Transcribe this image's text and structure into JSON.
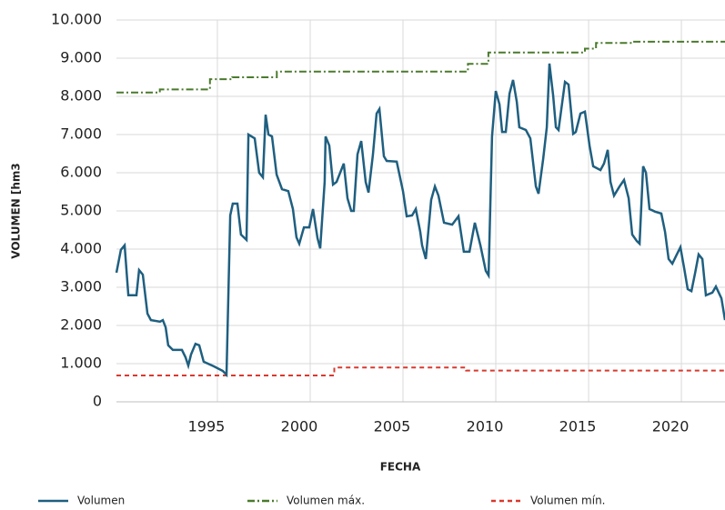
{
  "chart_data": {
    "type": "line",
    "xlabel": "FECHA",
    "ylabel": "VOLUMEN [hm3",
    "xlim": [
      1989.56,
      2022.35
    ],
    "xticks": [
      1995,
      2000,
      2005,
      2010,
      2015,
      2020
    ],
    "ylim": [
      0,
      10000
    ],
    "yticks": [
      0,
      {
        "value": 1000,
        "label": "1.000"
      },
      {
        "value": 2000,
        "label": "2.000"
      },
      {
        "value": 3000,
        "label": "3.000"
      },
      {
        "value": 4000,
        "label": "4.000"
      },
      {
        "value": 5000,
        "label": "5.000"
      },
      {
        "value": 6000,
        "label": "6.000"
      },
      {
        "value": 7000,
        "label": "7.000"
      },
      {
        "value": 8000,
        "label": "8.000"
      },
      {
        "value": 9000,
        "label": "9.000"
      },
      {
        "value": 10000,
        "label": "10.000"
      }
    ],
    "grid": true,
    "legend": "bottom",
    "series": [
      {
        "name": "Volumen",
        "color": "#1f5f80",
        "dash": "solid",
        "x": [
          1989.56,
          1989.8,
          1990.0,
          1990.2,
          1990.64,
          1990.78,
          1990.98,
          1991.23,
          1991.42,
          1991.91,
          1992.06,
          1992.21,
          1992.35,
          1992.6,
          1993.09,
          1993.28,
          1993.43,
          1993.58,
          1993.82,
          1994.02,
          1994.26,
          1994.8,
          1995.29,
          1995.49,
          1995.69,
          1995.83,
          1996.08,
          1996.27,
          1996.57,
          1996.67,
          1997.01,
          1997.25,
          1997.45,
          1997.6,
          1997.75,
          1997.94,
          1998.19,
          1998.48,
          1998.82,
          1999.07,
          1999.26,
          1999.41,
          1999.66,
          1999.95,
          2000.15,
          2000.39,
          2000.54,
          2000.78,
          2000.83,
          2001.03,
          2001.23,
          2001.42,
          2001.81,
          2002.01,
          2002.21,
          2002.35,
          2002.55,
          2002.75,
          2002.99,
          2003.14,
          2003.38,
          2003.58,
          2003.73,
          2003.97,
          2004.12,
          2004.66,
          2005.0,
          2005.2,
          2005.49,
          2005.69,
          2005.93,
          2006.03,
          2006.23,
          2006.52,
          2006.72,
          2006.91,
          2007.21,
          2007.65,
          2007.99,
          2008.28,
          2008.58,
          2008.87,
          2009.17,
          2009.46,
          2009.61,
          2009.8,
          2010.0,
          2010.2,
          2010.34,
          2010.54,
          2010.74,
          2010.93,
          2011.13,
          2011.27,
          2011.62,
          2011.86,
          2012.16,
          2012.3,
          2012.55,
          2012.75,
          2012.89,
          2013.09,
          2013.24,
          2013.38,
          2013.73,
          2013.92,
          2014.17,
          2014.31,
          2014.56,
          2014.8,
          2015.05,
          2015.25,
          2015.64,
          2015.83,
          2016.03,
          2016.18,
          2016.37,
          2016.67,
          2016.91,
          2017.16,
          2017.35,
          2017.6,
          2017.75,
          2017.94,
          2018.09,
          2018.28,
          2018.58,
          2018.92,
          2019.12,
          2019.31,
          2019.51,
          2019.75,
          2019.95,
          2020.15,
          2020.34,
          2020.54,
          2020.74,
          2020.93,
          2021.13,
          2021.32,
          2021.67,
          2021.86,
          2022.16,
          2022.35
        ],
        "values": [
          3380,
          3980,
          4100,
          2790,
          2790,
          3450,
          3330,
          2310,
          2140,
          2100,
          2140,
          1950,
          1480,
          1360,
          1360,
          1170,
          950,
          1240,
          1520,
          1480,
          1050,
          930,
          810,
          710,
          4880,
          5190,
          5190,
          4380,
          4240,
          7000,
          6900,
          6000,
          5880,
          7520,
          7000,
          6950,
          5950,
          5570,
          5520,
          5050,
          4310,
          4140,
          4570,
          4570,
          5050,
          4290,
          4020,
          5760,
          6950,
          6710,
          5690,
          5760,
          6240,
          5330,
          5000,
          5000,
          6480,
          6830,
          5760,
          5480,
          6480,
          7550,
          7670,
          6430,
          6310,
          6290,
          5520,
          4860,
          4880,
          5050,
          4450,
          4100,
          3740,
          5290,
          5640,
          5400,
          4690,
          4640,
          4860,
          3930,
          3930,
          4690,
          4100,
          3430,
          3310,
          6950,
          8140,
          7790,
          7070,
          7070,
          8070,
          8430,
          7860,
          7190,
          7120,
          6900,
          5640,
          5450,
          6360,
          7190,
          8860,
          8020,
          7190,
          7120,
          8380,
          8310,
          7020,
          7070,
          7550,
          7600,
          6710,
          6170,
          6070,
          6240,
          6600,
          5760,
          5400,
          5640,
          5810,
          5330,
          4380,
          4210,
          4140,
          6170,
          6000,
          5050,
          4980,
          4930,
          4450,
          3740,
          3620,
          3860,
          4050,
          3500,
          2950,
          2900,
          3380,
          3860,
          3740,
          2790,
          2860,
          3020,
          2710,
          2140
        ]
      },
      {
        "name": "Volumen máx.",
        "color": "#4a7a2c",
        "dash": "dashdot",
        "x": [
          1989.56,
          1991.9,
          1991.9,
          1994.6,
          1994.6,
          1995.8,
          1995.8,
          1998.2,
          1998.2,
          2008.5,
          2008.5,
          2009.6,
          2009.6,
          2014.8,
          2014.8,
          2015.4,
          2015.4,
          2017.4,
          2017.4,
          2022.35
        ],
        "values": [
          8100,
          8100,
          8180,
          8180,
          8450,
          8450,
          8500,
          8500,
          8650,
          8650,
          8850,
          8850,
          9150,
          9150,
          9250,
          9250,
          9400,
          9400,
          9430,
          9430
        ]
      },
      {
        "name": "Volumen mín.",
        "color": "#d9392e",
        "dash": "dashed",
        "x": [
          1989.56,
          2001.3,
          2001.3,
          2008.4,
          2008.4,
          2022.35
        ],
        "values": [
          690,
          690,
          900,
          900,
          820,
          820
        ]
      }
    ]
  }
}
